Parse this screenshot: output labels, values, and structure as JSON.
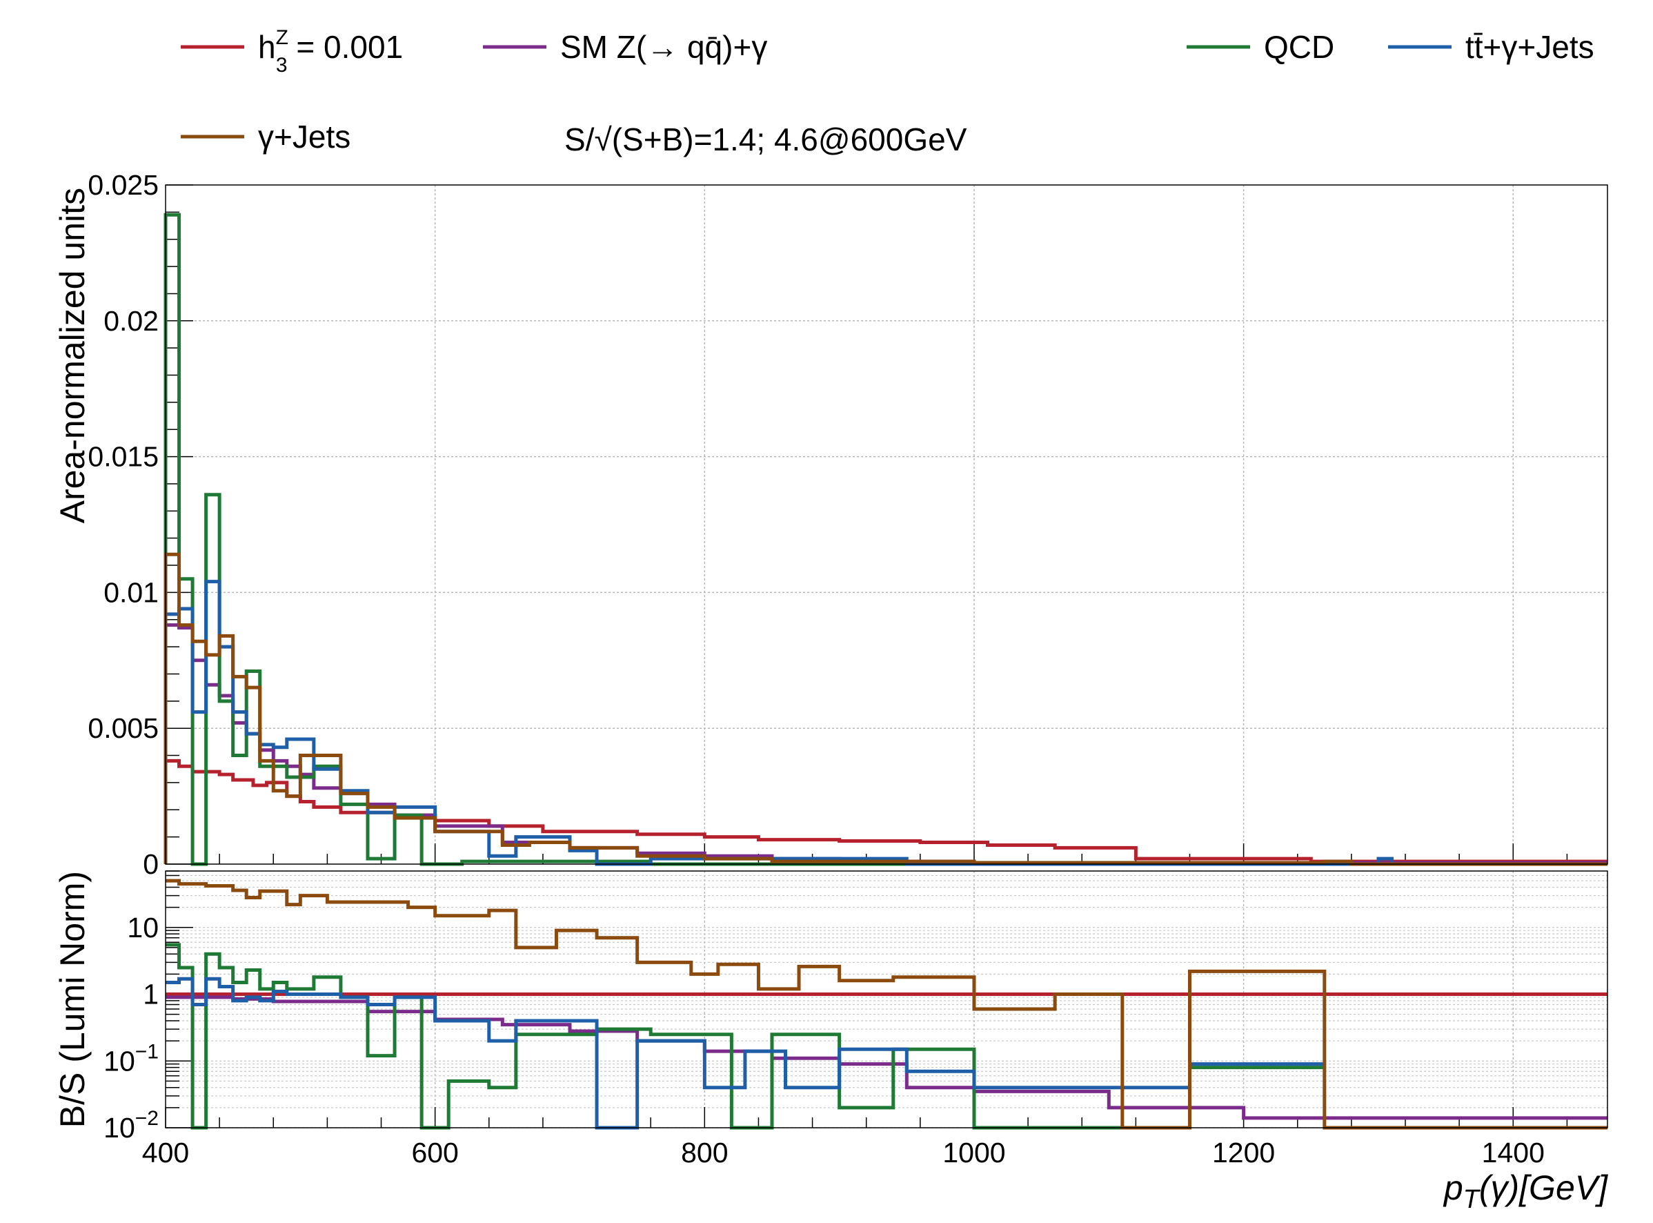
{
  "chart_data": [
    {
      "type": "line",
      "step": true,
      "xlabel": "p_T(γ)[GeV]",
      "ylabel": "Area-normalized units",
      "xlim": [
        400,
        1470
      ],
      "ylim": [
        0,
        0.025
      ],
      "y_ticks": [
        "0",
        "0.005",
        "0.01",
        "0.015",
        "0.02",
        "0.025"
      ],
      "x_ticks": [
        "400",
        "600",
        "800",
        "1000",
        "1200",
        "1400"
      ],
      "grid": true,
      "series": [
        {
          "name": "h3Z = 0.001",
          "color": "#b5212d",
          "points": [
            [
              400,
              0.0038
            ],
            [
              410,
              0.0036
            ],
            [
              420,
              0.0034
            ],
            [
              440,
              0.0033
            ],
            [
              450,
              0.0031
            ],
            [
              465,
              0.0029
            ],
            [
              475,
              0.003
            ],
            [
              490,
              0.0025
            ],
            [
              500,
              0.0023
            ],
            [
              510,
              0.0021
            ],
            [
              530,
              0.0019
            ],
            [
              570,
              0.0018
            ],
            [
              600,
              0.0016
            ],
            [
              640,
              0.0014
            ],
            [
              680,
              0.0012
            ],
            [
              750,
              0.0011
            ],
            [
              800,
              0.001
            ],
            [
              840,
              0.0009
            ],
            [
              900,
              0.00085
            ],
            [
              960,
              0.0008
            ],
            [
              1010,
              0.0007
            ],
            [
              1060,
              0.0006
            ],
            [
              1120,
              0.0002
            ],
            [
              1250,
              0.0001
            ],
            [
              1470,
              0.0001
            ]
          ]
        },
        {
          "name": "SM Z(→ qq̄)+γ",
          "color": "#7b2c8b",
          "points": [
            [
              400,
              0.0088
            ],
            [
              410,
              0.0087
            ],
            [
              420,
              0.0075
            ],
            [
              430,
              0.0066
            ],
            [
              440,
              0.0062
            ],
            [
              450,
              0.0052
            ],
            [
              460,
              0.0048
            ],
            [
              470,
              0.0042
            ],
            [
              480,
              0.0038
            ],
            [
              490,
              0.0036
            ],
            [
              500,
              0.0033
            ],
            [
              510,
              0.0028
            ],
            [
              530,
              0.0026
            ],
            [
              550,
              0.0022
            ],
            [
              570,
              0.0018
            ],
            [
              600,
              0.0014
            ],
            [
              650,
              0.0008
            ],
            [
              700,
              0.0006
            ],
            [
              750,
              0.0004
            ],
            [
              800,
              0.0003
            ],
            [
              850,
              0.0002
            ],
            [
              900,
              0.0001
            ],
            [
              1000,
              5e-05
            ],
            [
              1470,
              5e-05
            ]
          ]
        },
        {
          "name": "QCD",
          "color": "#1e7a35",
          "points": [
            [
              400,
              0.0239
            ],
            [
              410,
              0.0105
            ],
            [
              420,
              0.0
            ],
            [
              430,
              0.0136
            ],
            [
              440,
              0.006
            ],
            [
              450,
              0.004
            ],
            [
              460,
              0.0071
            ],
            [
              470,
              0.0036
            ],
            [
              490,
              0.0032
            ],
            [
              510,
              0.0036
            ],
            [
              530,
              0.0022
            ],
            [
              550,
              0.0002
            ],
            [
              570,
              0.0018
            ],
            [
              590,
              0.0
            ],
            [
              620,
              0.0001
            ],
            [
              700,
              0.0001
            ],
            [
              760,
              0.0
            ],
            [
              820,
              0.0
            ],
            [
              900,
              0.0
            ],
            [
              1470,
              0.0
            ]
          ]
        },
        {
          "name": "tt̄+γ+Jets",
          "color": "#1f5fa8",
          "points": [
            [
              400,
              0.0092
            ],
            [
              410,
              0.0094
            ],
            [
              420,
              0.0056
            ],
            [
              430,
              0.0104
            ],
            [
              440,
              0.008
            ],
            [
              450,
              0.0056
            ],
            [
              460,
              0.0048
            ],
            [
              470,
              0.0044
            ],
            [
              480,
              0.0043
            ],
            [
              490,
              0.0046
            ],
            [
              500,
              0.0046
            ],
            [
              510,
              0.0035
            ],
            [
              530,
              0.0027
            ],
            [
              550,
              0.0019
            ],
            [
              570,
              0.0021
            ],
            [
              600,
              0.0012
            ],
            [
              640,
              0.0003
            ],
            [
              660,
              0.001
            ],
            [
              700,
              0.0005
            ],
            [
              720,
              0.0
            ],
            [
              760,
              0.0002
            ],
            [
              800,
              0.0002
            ],
            [
              900,
              0.0002
            ],
            [
              950,
              0.0
            ],
            [
              1300,
              0.0002
            ],
            [
              1310,
              0.0
            ],
            [
              1470,
              0.0
            ]
          ]
        },
        {
          "name": "γ+Jets",
          "color": "#8b4a0e",
          "points": [
            [
              400,
              0.0114
            ],
            [
              410,
              0.0088
            ],
            [
              420,
              0.0082
            ],
            [
              430,
              0.0077
            ],
            [
              440,
              0.0084
            ],
            [
              450,
              0.0069
            ],
            [
              460,
              0.0065
            ],
            [
              470,
              0.0038
            ],
            [
              480,
              0.0027
            ],
            [
              490,
              0.0025
            ],
            [
              500,
              0.004
            ],
            [
              530,
              0.0026
            ],
            [
              550,
              0.0021
            ],
            [
              570,
              0.0017
            ],
            [
              600,
              0.0012
            ],
            [
              650,
              0.0007
            ],
            [
              670,
              0.0008
            ],
            [
              700,
              0.0006
            ],
            [
              750,
              0.0003
            ],
            [
              800,
              0.0002
            ],
            [
              850,
              0.0001
            ],
            [
              900,
              0.0001
            ],
            [
              1000,
              5e-05
            ],
            [
              1200,
              5e-05
            ],
            [
              1260,
              0.0001
            ],
            [
              1280,
              0.0
            ],
            [
              1470,
              0.0
            ]
          ]
        }
      ]
    },
    {
      "type": "line",
      "step": true,
      "xlabel": "p_T(γ)[GeV]",
      "ylabel": "B/S (Lumi Norm)",
      "xlim": [
        400,
        1470
      ],
      "ylim": [
        0.01,
        70
      ],
      "log_y": true,
      "y_ticks": [
        "10",
        "1",
        "10^-1",
        "10^-2"
      ],
      "grid": true,
      "series": [
        {
          "name": "h3Z = 0.001",
          "color": "#b5212d",
          "points": [
            [
              400,
              1.0
            ],
            [
              1470,
              1.0
            ]
          ]
        },
        {
          "name": "SM Z(→ qq̄)+γ",
          "color": "#7b2c8b",
          "points": [
            [
              400,
              0.9
            ],
            [
              450,
              0.85
            ],
            [
              480,
              0.78
            ],
            [
              550,
              0.55
            ],
            [
              600,
              0.42
            ],
            [
              650,
              0.35
            ],
            [
              700,
              0.28
            ],
            [
              750,
              0.2
            ],
            [
              800,
              0.14
            ],
            [
              850,
              0.11
            ],
            [
              900,
              0.09
            ],
            [
              950,
              0.04
            ],
            [
              1000,
              0.035
            ],
            [
              1100,
              0.02
            ],
            [
              1200,
              0.014
            ],
            [
              1260,
              0.014
            ],
            [
              1470,
              0.014
            ]
          ]
        },
        {
          "name": "QCD",
          "color": "#1e7a35",
          "points": [
            [
              400,
              5.5
            ],
            [
              410,
              2.5
            ],
            [
              420,
              0.01
            ],
            [
              430,
              4.0
            ],
            [
              440,
              2.5
            ],
            [
              450,
              1.5
            ],
            [
              460,
              2.3
            ],
            [
              470,
              1.2
            ],
            [
              480,
              1.5
            ],
            [
              490,
              1.2
            ],
            [
              510,
              1.8
            ],
            [
              530,
              0.9
            ],
            [
              550,
              0.12
            ],
            [
              570,
              0.9
            ],
            [
              590,
              0.01
            ],
            [
              610,
              0.05
            ],
            [
              640,
              0.04
            ],
            [
              660,
              0.25
            ],
            [
              720,
              0.3
            ],
            [
              760,
              0.25
            ],
            [
              820,
              0.01
            ],
            [
              850,
              0.25
            ],
            [
              900,
              0.02
            ],
            [
              940,
              0.15
            ],
            [
              1000,
              0.01
            ],
            [
              1160,
              0.08
            ],
            [
              1260,
              0.08
            ]
          ]
        },
        {
          "name": "tt̄+γ+Jets",
          "color": "#1f5fa8",
          "points": [
            [
              400,
              1.5
            ],
            [
              410,
              1.7
            ],
            [
              420,
              0.7
            ],
            [
              430,
              1.7
            ],
            [
              440,
              1.3
            ],
            [
              450,
              0.8
            ],
            [
              460,
              0.9
            ],
            [
              470,
              0.8
            ],
            [
              480,
              1.1
            ],
            [
              490,
              1.0
            ],
            [
              530,
              0.9
            ],
            [
              550,
              0.7
            ],
            [
              570,
              0.9
            ],
            [
              600,
              0.4
            ],
            [
              640,
              0.2
            ],
            [
              660,
              0.4
            ],
            [
              720,
              0.01
            ],
            [
              750,
              0.2
            ],
            [
              800,
              0.04
            ],
            [
              830,
              0.14
            ],
            [
              860,
              0.04
            ],
            [
              900,
              0.15
            ],
            [
              950,
              0.07
            ],
            [
              1000,
              0.04
            ],
            [
              1160,
              0.09
            ],
            [
              1260,
              0.09
            ]
          ]
        },
        {
          "name": "γ+Jets",
          "color": "#8b4a0e",
          "points": [
            [
              400,
              50.0
            ],
            [
              410,
              45.0
            ],
            [
              430,
              42.0
            ],
            [
              450,
              36.0
            ],
            [
              460,
              28.0
            ],
            [
              470,
              35.0
            ],
            [
              490,
              22.0
            ],
            [
              500,
              30.0
            ],
            [
              520,
              24.0
            ],
            [
              580,
              20.0
            ],
            [
              600,
              15.0
            ],
            [
              640,
              18.0
            ],
            [
              660,
              5.0
            ],
            [
              690,
              9.0
            ],
            [
              720,
              7.0
            ],
            [
              750,
              3.0
            ],
            [
              790,
              2.0
            ],
            [
              810,
              2.8
            ],
            [
              840,
              1.2
            ],
            [
              870,
              2.6
            ],
            [
              900,
              1.6
            ],
            [
              940,
              1.8
            ],
            [
              1000,
              0.6
            ],
            [
              1060,
              1.0
            ],
            [
              1110,
              0.01
            ],
            [
              1160,
              2.2
            ],
            [
              1260,
              0.01
            ],
            [
              1470,
              0.01
            ]
          ]
        }
      ]
    }
  ],
  "legend": {
    "entries": [
      {
        "id": "h3",
        "label_main": "h",
        "label_sup": "Z",
        "label_sub": "3",
        "label_rest": " = 0.001",
        "color": "#b5212d"
      },
      {
        "id": "sm",
        "label": "SM Z(→ qq̄)+γ",
        "color": "#7b2c8b"
      },
      {
        "id": "qcd",
        "label": "QCD",
        "color": "#1e7a35"
      },
      {
        "id": "tt",
        "label": "tt̄+γ+Jets",
        "color": "#1f5fa8"
      },
      {
        "id": "gj",
        "label": "γ+Jets",
        "color": "#8b4a0e"
      }
    ],
    "significance": "S/√(S+B)=1.4; 4.6@600GeV"
  }
}
